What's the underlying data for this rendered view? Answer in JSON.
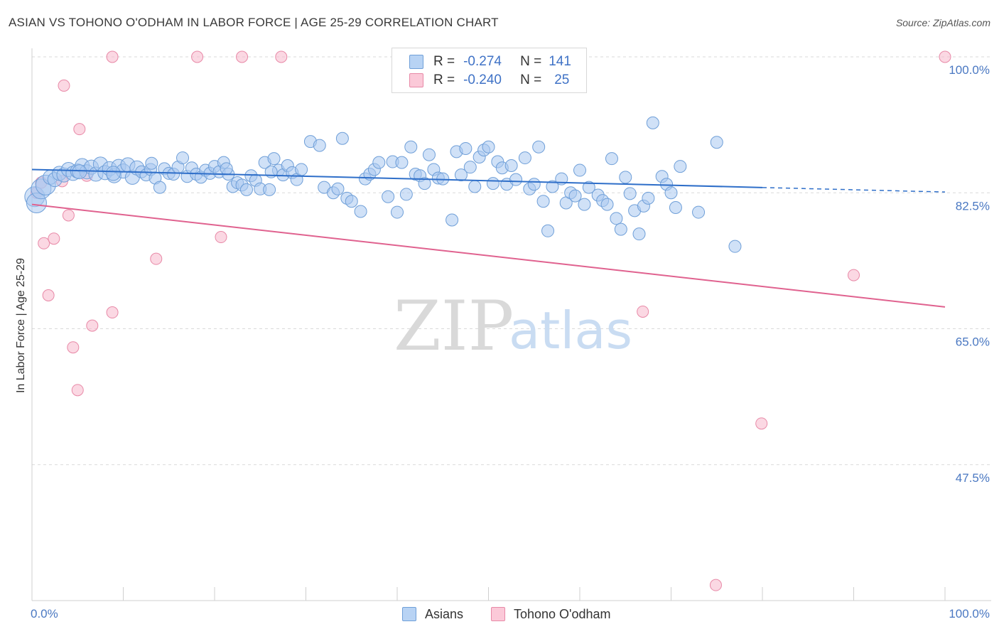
{
  "title": "ASIAN VS TOHONO O'ODHAM IN LABOR FORCE | AGE 25-29 CORRELATION CHART",
  "source": "Source: ZipAtlas.com",
  "watermark": {
    "zip": "ZIP",
    "atlas": "atlas"
  },
  "legend": {
    "rows": [
      {
        "r_label": "R =",
        "r_value": "-0.274",
        "n_label": "N =",
        "n_value": "141",
        "color": "#a9c8f0"
      },
      {
        "r_label": "R =",
        "r_value": "-0.240",
        "n_label": "N =",
        "n_value": "25",
        "color": "#f7b8cc"
      }
    ]
  },
  "bottom_legend": [
    "Asians",
    "Tohono O'odham"
  ],
  "chart_data": {
    "type": "scatter",
    "title": "ASIAN VS TOHONO O'ODHAM IN LABOR FORCE | AGE 25-29 CORRELATION CHART",
    "xlabel": "",
    "ylabel": "In Labor Force | Age 25-29",
    "xlim": [
      0,
      100
    ],
    "ylim": [
      30,
      100
    ],
    "x_tick_labels": [
      "0.0%",
      "100.0%"
    ],
    "y_ticks": [
      100,
      82.5,
      65,
      47.5
    ],
    "y_tick_labels": [
      "100.0%",
      "82.5%",
      "65.0%",
      "47.5%"
    ],
    "grid": "horizontal dashed",
    "colors": {
      "asians_fill": "#a9c8f0",
      "asians_stroke": "#6f9fd8",
      "asians_line": "#2f6fc9",
      "tohono_fill": "#f7b8cc",
      "tohono_stroke": "#e889a7",
      "tohono_line": "#e0628f"
    },
    "series": [
      {
        "name": "Asians",
        "trend": {
          "x": [
            0,
            100
          ],
          "y": [
            85.5,
            82.6
          ],
          "solid_until_x": 80
        },
        "points": [
          [
            0.3,
            82.0
          ],
          [
            0.5,
            81.2
          ],
          [
            1.0,
            83.0
          ],
          [
            1.5,
            83.5
          ],
          [
            2.0,
            84.5
          ],
          [
            2.5,
            84.2
          ],
          [
            3.0,
            85.0
          ],
          [
            3.5,
            84.8
          ],
          [
            4.0,
            85.5
          ],
          [
            4.5,
            85.0
          ],
          [
            5.0,
            85.3
          ],
          [
            5.5,
            86.0
          ],
          [
            6.0,
            85.2
          ],
          [
            6.5,
            85.8
          ],
          [
            7.0,
            84.9
          ],
          [
            7.5,
            86.2
          ],
          [
            8.0,
            85.1
          ],
          [
            8.5,
            85.6
          ],
          [
            9.0,
            84.7
          ],
          [
            9.5,
            85.9
          ],
          [
            10.0,
            85.3
          ],
          [
            10.5,
            86.1
          ],
          [
            11.0,
            84.5
          ],
          [
            11.5,
            85.7
          ],
          [
            12.0,
            85.2
          ],
          [
            12.5,
            84.8
          ],
          [
            13.0,
            85.5
          ],
          [
            13.5,
            84.4
          ],
          [
            14.0,
            83.2
          ],
          [
            14.5,
            85.6
          ],
          [
            15.0,
            85.0
          ],
          [
            15.5,
            84.9
          ],
          [
            16.0,
            85.8
          ],
          [
            16.5,
            87.0
          ],
          [
            17.0,
            84.6
          ],
          [
            17.5,
            85.7
          ],
          [
            18.0,
            84.9
          ],
          [
            18.5,
            84.5
          ],
          [
            19.0,
            85.4
          ],
          [
            19.5,
            85.0
          ],
          [
            20.0,
            85.9
          ],
          [
            20.5,
            85.2
          ],
          [
            21.0,
            86.4
          ],
          [
            21.5,
            84.9
          ],
          [
            22.0,
            83.3
          ],
          [
            22.5,
            83.8
          ],
          [
            23.0,
            83.5
          ],
          [
            23.5,
            82.9
          ],
          [
            24.0,
            84.7
          ],
          [
            24.5,
            84.1
          ],
          [
            25.0,
            83.0
          ],
          [
            25.5,
            86.4
          ],
          [
            26.0,
            82.9
          ],
          [
            26.5,
            86.9
          ],
          [
            27.0,
            85.4
          ],
          [
            27.5,
            84.8
          ],
          [
            28.0,
            86.0
          ],
          [
            28.5,
            85.1
          ],
          [
            29.0,
            84.2
          ],
          [
            29.5,
            85.5
          ],
          [
            30.5,
            89.1
          ],
          [
            31.5,
            88.6
          ],
          [
            32.0,
            83.2
          ],
          [
            33.0,
            82.5
          ],
          [
            33.5,
            83.0
          ],
          [
            34.0,
            89.5
          ],
          [
            34.5,
            81.8
          ],
          [
            35.0,
            81.4
          ],
          [
            36.0,
            80.1
          ],
          [
            36.5,
            84.3
          ],
          [
            37.0,
            84.9
          ],
          [
            37.5,
            85.5
          ],
          [
            38.0,
            86.4
          ],
          [
            39.0,
            82.0
          ],
          [
            39.5,
            86.5
          ],
          [
            40.0,
            80.0
          ],
          [
            40.5,
            86.4
          ],
          [
            41.0,
            82.3
          ],
          [
            41.5,
            88.4
          ],
          [
            42.0,
            84.9
          ],
          [
            42.5,
            84.7
          ],
          [
            43.0,
            83.7
          ],
          [
            43.5,
            87.4
          ],
          [
            44.0,
            85.5
          ],
          [
            44.5,
            84.4
          ],
          [
            45.0,
            84.3
          ],
          [
            46.0,
            79.0
          ],
          [
            46.5,
            87.8
          ],
          [
            47.0,
            84.8
          ],
          [
            47.5,
            88.2
          ],
          [
            48.0,
            85.8
          ],
          [
            48.5,
            83.3
          ],
          [
            49.0,
            87.1
          ],
          [
            49.5,
            88.0
          ],
          [
            50.0,
            88.4
          ],
          [
            50.5,
            83.7
          ],
          [
            51.0,
            86.5
          ],
          [
            51.5,
            85.7
          ],
          [
            52.0,
            83.6
          ],
          [
            52.5,
            86.0
          ],
          [
            53.0,
            84.2
          ],
          [
            54.0,
            87.0
          ],
          [
            54.5,
            83.0
          ],
          [
            55.0,
            83.6
          ],
          [
            55.5,
            88.4
          ],
          [
            56.0,
            81.4
          ],
          [
            56.5,
            77.6
          ],
          [
            57.0,
            83.3
          ],
          [
            58.0,
            84.3
          ],
          [
            58.5,
            81.2
          ],
          [
            59.0,
            82.5
          ],
          [
            59.5,
            82.1
          ],
          [
            60.0,
            85.4
          ],
          [
            60.5,
            81.0
          ],
          [
            61.0,
            83.2
          ],
          [
            62.0,
            82.2
          ],
          [
            62.5,
            81.5
          ],
          [
            63.0,
            81.0
          ],
          [
            63.5,
            86.9
          ],
          [
            64.0,
            79.2
          ],
          [
            64.5,
            77.8
          ],
          [
            65.0,
            84.5
          ],
          [
            65.5,
            82.4
          ],
          [
            66.0,
            80.2
          ],
          [
            66.5,
            77.2
          ],
          [
            67.0,
            80.8
          ],
          [
            68.0,
            91.5
          ],
          [
            69.0,
            84.6
          ],
          [
            69.5,
            83.6
          ],
          [
            70.0,
            82.5
          ],
          [
            70.5,
            80.6
          ],
          [
            71.0,
            85.9
          ],
          [
            73.0,
            80.0
          ],
          [
            75.0,
            89.0
          ],
          [
            77.0,
            75.6
          ],
          [
            67.5,
            81.8
          ],
          [
            21.3,
            85.6
          ],
          [
            5.2,
            85.2
          ],
          [
            8.9,
            85.0
          ],
          [
            13.1,
            86.3
          ],
          [
            26.2,
            85.2
          ]
        ]
      },
      {
        "name": "Tohono O'odham",
        "trend": {
          "x": [
            0,
            100
          ],
          "y": [
            81.0,
            67.8
          ]
        },
        "points": [
          [
            0.5,
            82.5
          ],
          [
            1.0,
            83.8
          ],
          [
            1.3,
            76.0
          ],
          [
            1.8,
            69.3
          ],
          [
            2.4,
            76.6
          ],
          [
            3.5,
            96.3
          ],
          [
            4.0,
            79.6
          ],
          [
            4.5,
            62.6
          ],
          [
            5.0,
            57.1
          ],
          [
            5.2,
            90.7
          ],
          [
            6.0,
            84.7
          ],
          [
            6.6,
            65.4
          ],
          [
            8.8,
            100.0
          ],
          [
            8.8,
            67.1
          ],
          [
            13.6,
            74.0
          ],
          [
            18.1,
            100.0
          ],
          [
            20.7,
            76.8
          ],
          [
            23.0,
            100.0
          ],
          [
            27.3,
            100.0
          ],
          [
            66.9,
            67.2
          ],
          [
            74.9,
            32.0
          ],
          [
            79.9,
            52.8
          ],
          [
            90.0,
            71.9
          ],
          [
            100.0,
            100.0
          ],
          [
            3.3,
            84.0
          ]
        ]
      }
    ]
  }
}
